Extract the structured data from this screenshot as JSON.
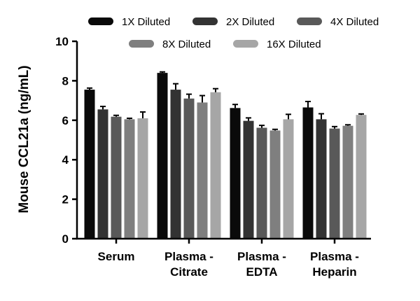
{
  "chart_data": {
    "type": "bar",
    "title": "",
    "xlabel": "",
    "ylabel": "Mouse CCL21a (ng/mL)",
    "ylim": [
      0,
      10
    ],
    "yticks": [
      "0",
      "2",
      "4",
      "6",
      "8",
      "10"
    ],
    "categories": [
      [
        "Serum"
      ],
      [
        "Plasma -",
        "Citrate"
      ],
      [
        "Plasma -",
        "EDTA"
      ],
      [
        "Plasma -",
        "Heparin"
      ]
    ],
    "legend_position": "top",
    "grid": false,
    "series": [
      {
        "name": "1X Diluted",
        "color": "#0a0a0a",
        "values": [
          7.55,
          8.4,
          6.62,
          6.65
        ],
        "errors": [
          0.08,
          0.05,
          0.18,
          0.3
        ]
      },
      {
        "name": "2X Diluted",
        "color": "#333333",
        "values": [
          6.55,
          7.55,
          5.97,
          6.05
        ],
        "errors": [
          0.15,
          0.3,
          0.15,
          0.28
        ]
      },
      {
        "name": "4X Diluted",
        "color": "#595959",
        "values": [
          6.18,
          7.1,
          5.62,
          5.58
        ],
        "errors": [
          0.07,
          0.22,
          0.12,
          0.1
        ]
      },
      {
        "name": "8X Diluted",
        "color": "#7f7f7f",
        "values": [
          6.05,
          6.9,
          5.48,
          5.72
        ],
        "errors": [
          0.05,
          0.35,
          0.06,
          0.05
        ]
      },
      {
        "name": "16X Diluted",
        "color": "#a6a6a6",
        "values": [
          6.1,
          7.42,
          6.05,
          6.27
        ],
        "errors": [
          0.32,
          0.18,
          0.25,
          0.05
        ]
      }
    ]
  }
}
